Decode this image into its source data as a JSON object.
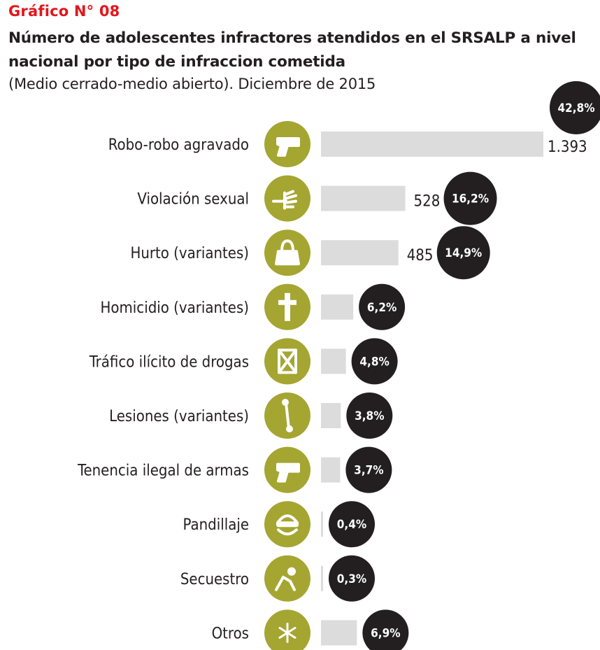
{
  "header": {
    "kicker": "Gráfico N° 08",
    "title": "Número de adolescentes infractores atendidos en el SRSALP a nivel nacional por tipo de infraccion cometida",
    "subtitle": "(Medio cerrado-medio abierto). Diciembre de 2015"
  },
  "colors": {
    "bar": "#dcdcdc",
    "icon_circle": "#a5a532",
    "badge": "#231f20",
    "kicker": "#e3161b"
  },
  "chart_data": {
    "type": "bar",
    "orientation": "horizontal",
    "title": "Número de adolescentes infractores atendidos en el SRSALP a nivel nacional por tipo de infraccion cometida",
    "subtitle": "(Medio cerrado-medio abierto). Diciembre de 2015",
    "categories": [
      "Robo-robo agravado",
      "Violación sexual",
      "Hurto (variantes)",
      "Homicidio (variantes)",
      "Tráfico ilícito de drogas",
      "Lesiones (variantes)",
      "Tenencia ilegal de armas",
      "Pandillaje",
      "Secuestro",
      "Otros"
    ],
    "values": [
      1393,
      528,
      485,
      202,
      156,
      124,
      120,
      13,
      10,
      225
    ],
    "value_labels": [
      "1.393",
      "528",
      "485",
      "",
      "",
      "",
      "",
      "",
      "",
      ""
    ],
    "percent_labels": [
      "42,8%",
      "16,2%",
      "14,9%",
      "6,2%",
      "4,8%",
      "3,8%",
      "3,7%",
      "0,4%",
      "0,3%",
      "6,9%"
    ],
    "icons": [
      "gun-icon",
      "grab-hand-icon",
      "handbag-icon",
      "cross-icon",
      "drug-package-icon",
      "bone-icon",
      "gun-icon",
      "masked-face-icon",
      "kidnapped-person-icon",
      "asterisk-icon"
    ],
    "xlim": [
      0,
      1393
    ],
    "grid": false,
    "legend": "none"
  }
}
